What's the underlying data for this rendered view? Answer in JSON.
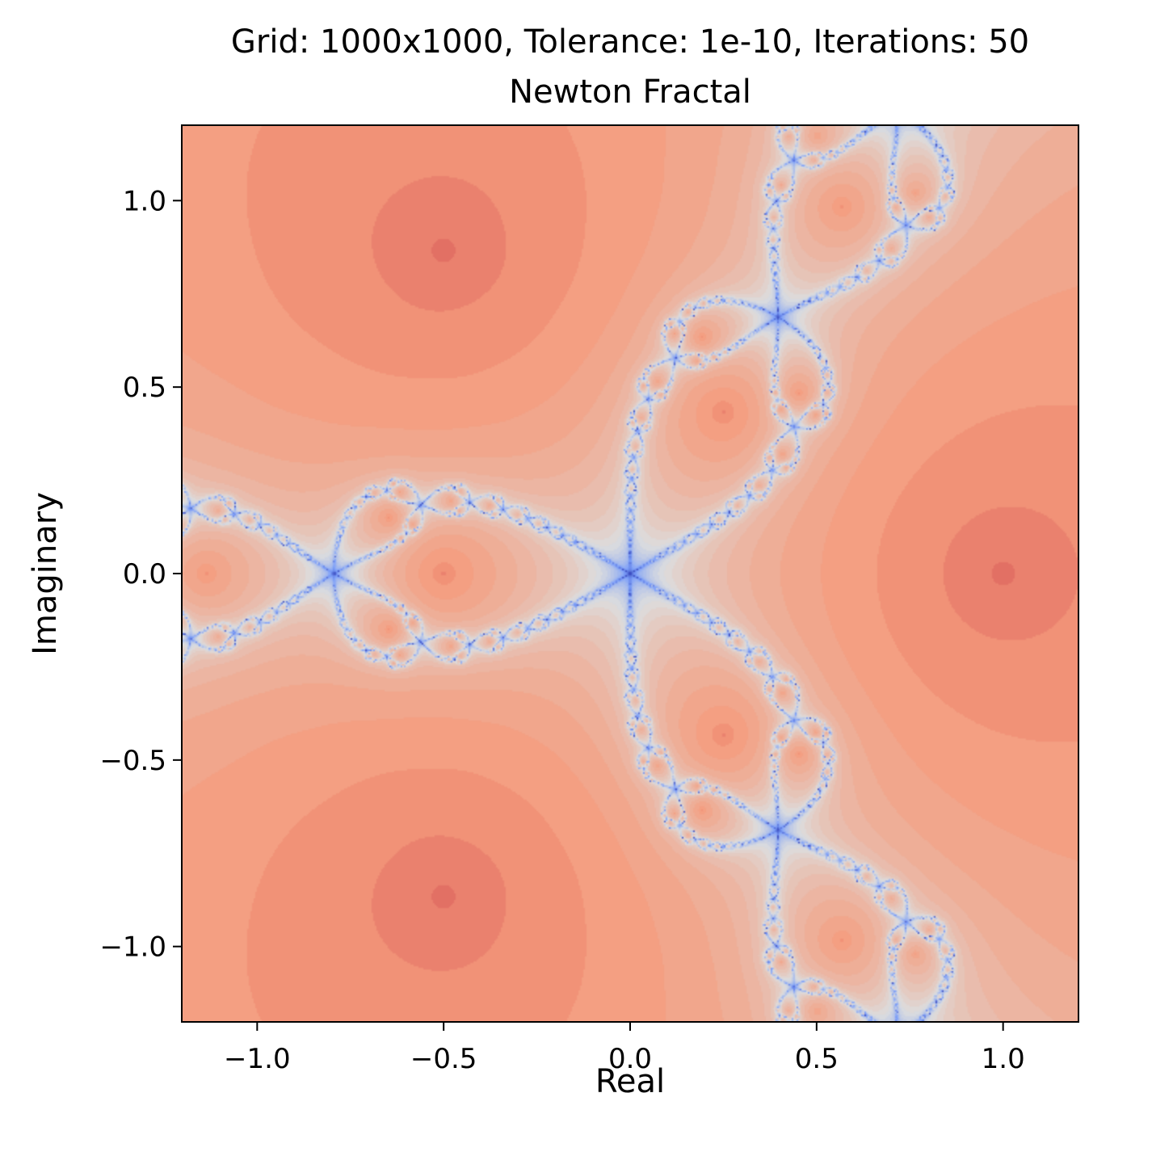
{
  "chart_data": {
    "type": "heatmap",
    "title_line1": "Grid: 1000x1000, Tolerance: 1e-10, Iterations: 50",
    "title_line2": "Newton Fractal",
    "xlabel": "Real",
    "ylabel": "Imaginary",
    "xlim": [
      -1.2,
      1.2
    ],
    "ylim": [
      -1.2,
      1.2
    ],
    "xticks": [
      -1.0,
      -0.5,
      0.0,
      0.5,
      1.0
    ],
    "xtick_labels": [
      "−1.0",
      "−0.5",
      "0.0",
      "0.5",
      "1.0"
    ],
    "yticks": [
      -1.0,
      -0.5,
      0.0,
      0.5,
      1.0
    ],
    "ytick_labels": [
      "−1.0",
      "−0.5",
      "0.0",
      "0.5",
      "1.0"
    ],
    "colormap": "coolwarm",
    "grid": false,
    "roots": [
      {
        "re": 1.0,
        "im": 0.0
      },
      {
        "re": -0.5,
        "im": 0.866
      },
      {
        "re": -0.5,
        "im": -0.866
      }
    ],
    "grid_size": 1000,
    "tolerance": 1e-10,
    "max_iterations": 50
  },
  "colors": {
    "axis": "#000000",
    "background": "#ffffff"
  }
}
